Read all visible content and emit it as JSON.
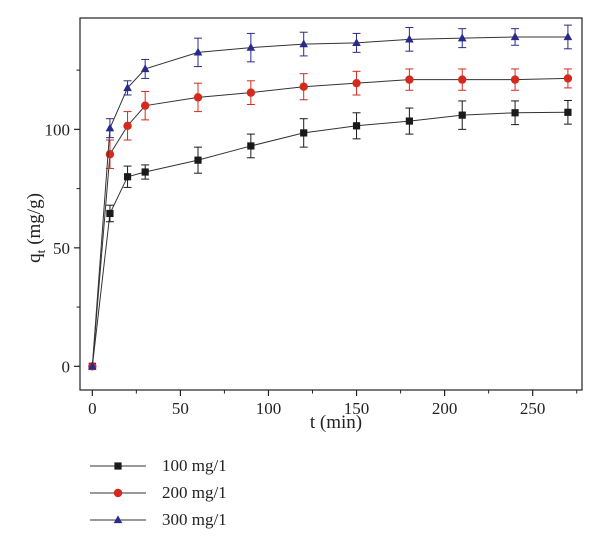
{
  "chart_data": {
    "type": "line",
    "xlabel": "t (min)",
    "ylabel_main": "q",
    "ylabel_sub": "t",
    "ylabel_unit": "(mg/g)",
    "xlim": [
      -7,
      278
    ],
    "ylim": [
      -10,
      147
    ],
    "xticks": [
      0,
      50,
      100,
      150,
      200,
      250
    ],
    "yticks": [
      0,
      50,
      100
    ],
    "x": [
      0,
      10,
      20,
      30,
      60,
      90,
      120,
      150,
      180,
      210,
      240,
      270
    ],
    "series": [
      {
        "name": "100 mg/1",
        "color": "#1a1a1a",
        "marker": "square",
        "values": [
          0,
          64.5,
          80,
          82,
          87,
          93,
          98.5,
          101.5,
          103.5,
          106,
          107,
          107.2
        ],
        "errors": [
          0,
          3.5,
          4.5,
          3,
          5.5,
          5,
          6,
          5.5,
          5.5,
          6,
          5,
          5
        ]
      },
      {
        "name": "200 mg/1",
        "color": "#d42a1e",
        "marker": "circle",
        "values": [
          0,
          89.5,
          101.5,
          110,
          113.5,
          115.5,
          118,
          119.5,
          121,
          121,
          121,
          121.5
        ],
        "errors": [
          0,
          6,
          6,
          6,
          6,
          5,
          5.5,
          5,
          4.5,
          4.5,
          4.5,
          4
        ]
      },
      {
        "name": "300 mg/1",
        "color": "#2a2a8e",
        "marker": "triangle",
        "values": [
          0,
          100.5,
          117.5,
          125.5,
          132.5,
          134.5,
          136,
          136.5,
          138,
          138.5,
          139,
          139
        ],
        "errors": [
          0,
          4,
          3,
          4,
          6,
          6,
          5,
          4,
          5,
          4,
          3.5,
          5
        ]
      }
    ],
    "grid": false,
    "legend_position": "bottom-left"
  }
}
